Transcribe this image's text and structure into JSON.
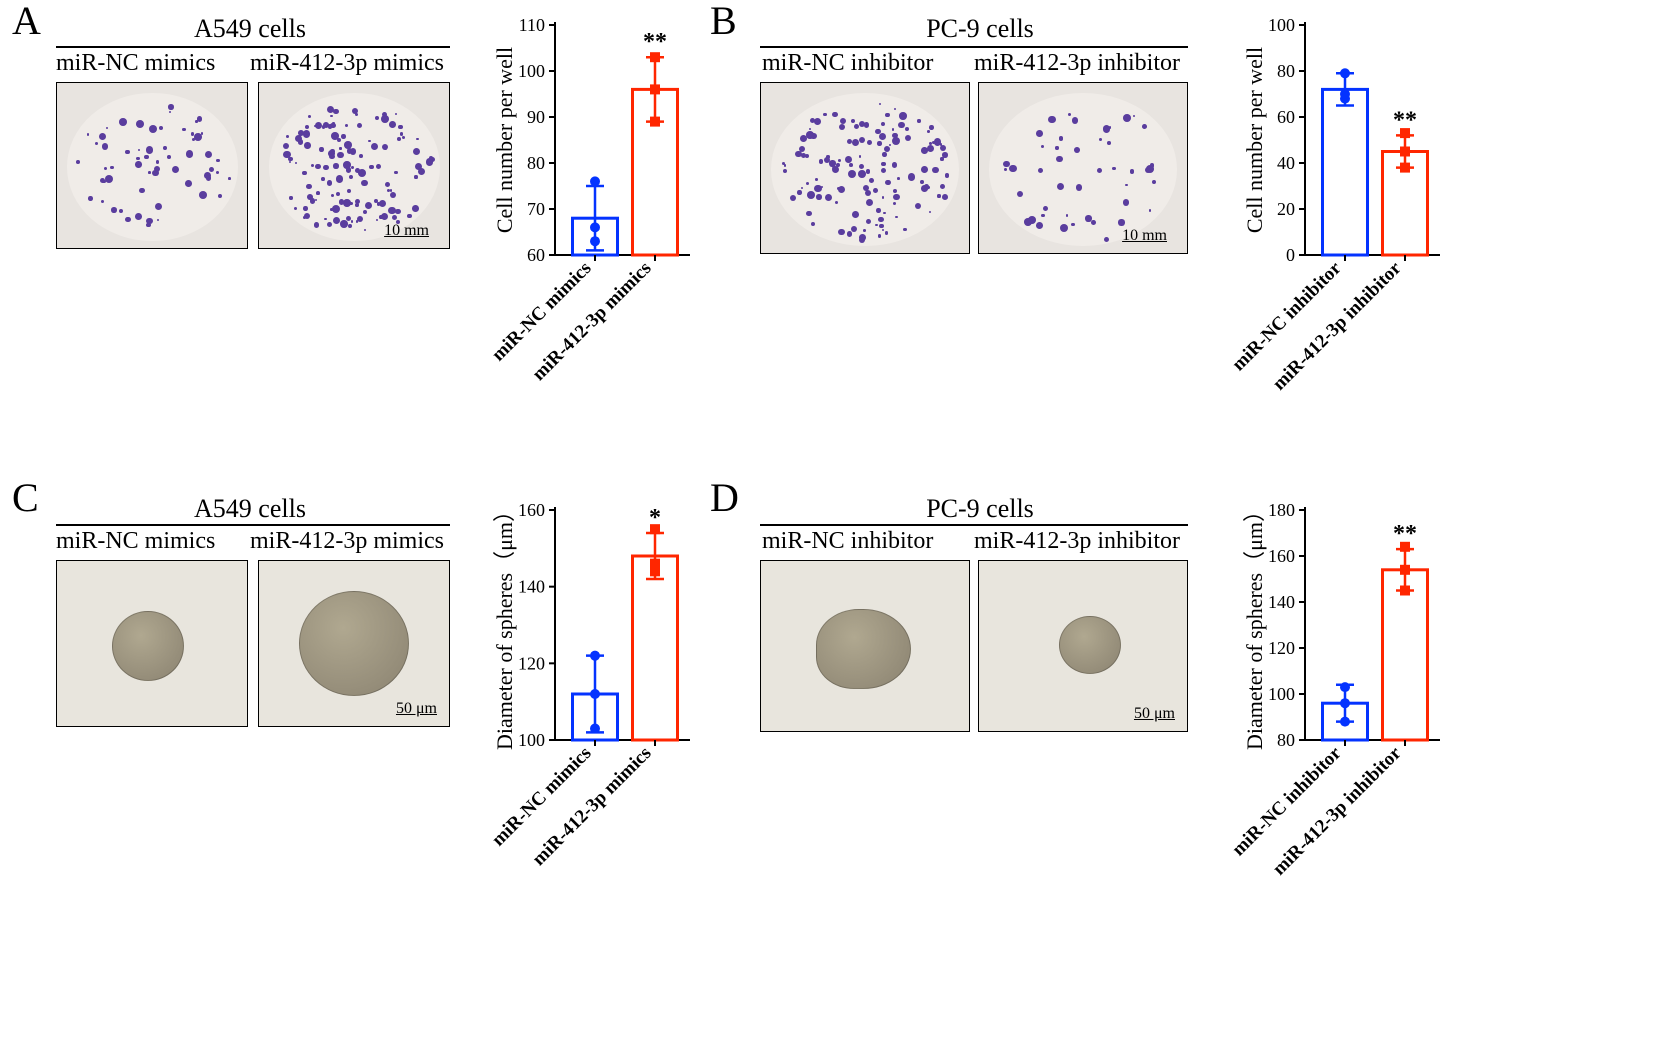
{
  "panelA": {
    "letter": "A",
    "cell_title": "A549 cells",
    "conditions": [
      "miR-NC mimics",
      "miR-412-3p mimics"
    ],
    "scale_bar": "10 mm",
    "chart": {
      "type": "bar",
      "ylabel": "Cell number per well",
      "ylim": [
        60,
        110
      ],
      "yticks": [
        60,
        70,
        80,
        90,
        100,
        110
      ],
      "categories": [
        "miR-NC mimics",
        "miR-412-3p mimics"
      ],
      "values": [
        68,
        96
      ],
      "points": [
        [
          63,
          66,
          76
        ],
        [
          89,
          96,
          103
        ]
      ],
      "errors": [
        7,
        7
      ],
      "colors": [
        "#0433ff",
        "#ff2600"
      ],
      "marker_shapes": [
        "circle",
        "square"
      ],
      "significance": [
        "",
        "**"
      ],
      "ylabel_fontsize": 22,
      "tick_fontsize": 18
    }
  },
  "panelB": {
    "letter": "B",
    "cell_title": "PC-9 cells",
    "conditions": [
      "miR-NC inhibitor",
      "miR-412-3p inhibitor"
    ],
    "scale_bar": "10 mm",
    "chart": {
      "type": "bar",
      "ylabel": "Cell number per well",
      "ylim": [
        0,
        100
      ],
      "yticks": [
        0,
        20,
        40,
        60,
        80,
        100
      ],
      "categories": [
        "miR-NC inhibitor",
        "miR-412-3p inhibitor"
      ],
      "values": [
        72,
        45
      ],
      "points": [
        [
          68,
          70,
          79
        ],
        [
          38,
          45,
          53
        ]
      ],
      "errors": [
        7,
        7
      ],
      "colors": [
        "#0433ff",
        "#ff2600"
      ],
      "marker_shapes": [
        "circle",
        "square"
      ],
      "significance": [
        "",
        "**"
      ],
      "ylabel_fontsize": 22,
      "tick_fontsize": 18
    }
  },
  "panelC": {
    "letter": "C",
    "cell_title": "A549 cells",
    "conditions": [
      "miR-NC mimics",
      "miR-412-3p mimics"
    ],
    "scale_bar": "50 μm",
    "chart": {
      "type": "bar",
      "ylabel": "Diameter of spheres（μm）",
      "ylim": [
        100,
        160
      ],
      "yticks": [
        100,
        120,
        140,
        160
      ],
      "categories": [
        "miR-NC mimics",
        "miR-412-3p mimics"
      ],
      "values": [
        112,
        148
      ],
      "points": [
        [
          103,
          112,
          122
        ],
        [
          144,
          146,
          155
        ]
      ],
      "errors": [
        10,
        6
      ],
      "colors": [
        "#0433ff",
        "#ff2600"
      ],
      "marker_shapes": [
        "circle",
        "square"
      ],
      "significance": [
        "",
        "*"
      ],
      "ylabel_fontsize": 22,
      "tick_fontsize": 18
    }
  },
  "panelD": {
    "letter": "D",
    "cell_title": "PC-9 cells",
    "conditions": [
      "miR-NC inhibitor",
      "miR-412-3p inhibitor"
    ],
    "scale_bar": "50 μm",
    "chart": {
      "type": "bar",
      "ylabel": "Diameter of spheres（μm）",
      "ylim": [
        80,
        180
      ],
      "yticks": [
        80,
        100,
        120,
        140,
        160,
        180
      ],
      "categories": [
        "miR-NC inhibitor",
        "miR-412-3p inhibitor"
      ],
      "values": [
        96,
        154
      ],
      "points": [
        [
          88,
          96,
          103
        ],
        [
          145,
          154,
          164
        ]
      ],
      "errors": [
        8,
        9
      ],
      "colors": [
        "#0433ff",
        "#ff2600"
      ],
      "marker_shapes": [
        "circle",
        "square"
      ],
      "significance": [
        "",
        "**"
      ],
      "ylabel_fontsize": 22,
      "tick_fontsize": 18
    }
  },
  "colony_density": {
    "sparse": 60,
    "dense": 130,
    "medium": 45
  },
  "sphere_style": {
    "small_d": 70,
    "large_d": 105
  },
  "colors": {
    "blue": "#0433ff",
    "red": "#ff2600",
    "colony": "#5a3d9e"
  }
}
